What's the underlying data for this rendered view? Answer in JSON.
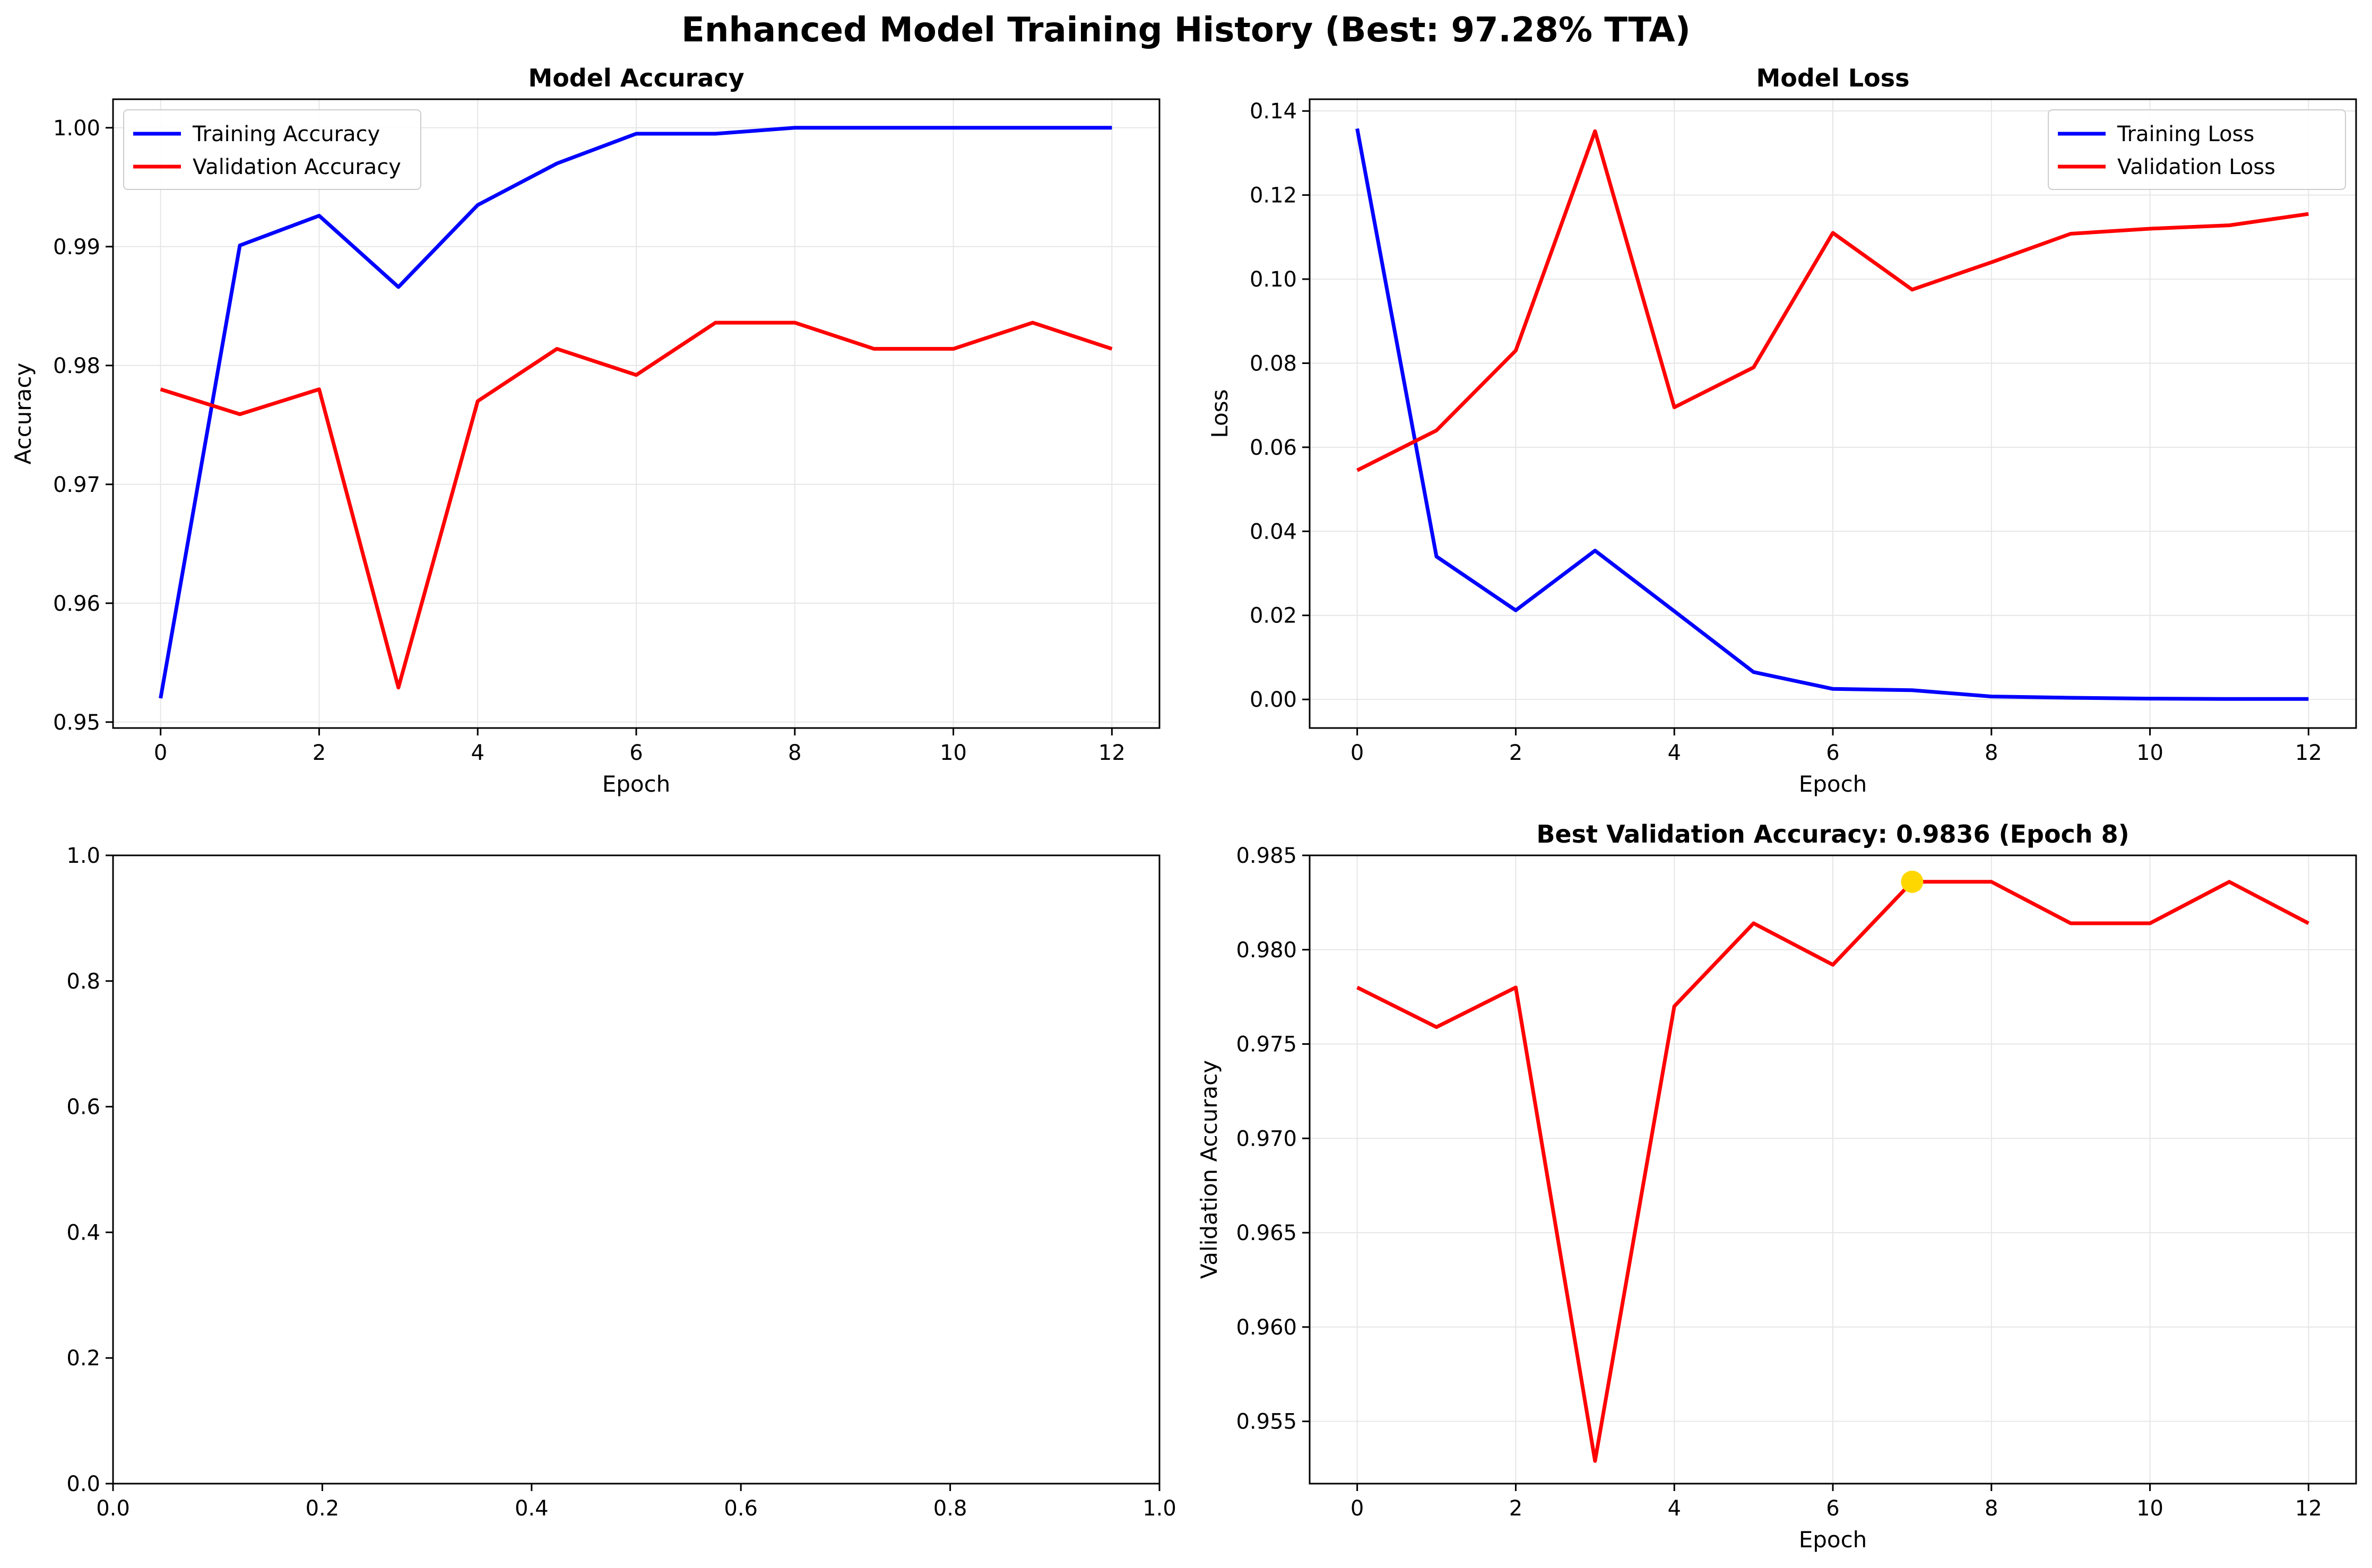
{
  "suptitle": "Enhanced Model Training History (Best: 97.28% TTA)",
  "colors": {
    "training": "#0000ff",
    "validation": "#ff0000",
    "best_marker": "#ffd700",
    "grid": "#e6e6e6"
  },
  "chart_data": [
    {
      "type": "line",
      "title": "Model Accuracy",
      "xlabel": "Epoch",
      "ylabel": "Accuracy",
      "xlim": [
        -0.6,
        12.6
      ],
      "ylim": [
        0.9495,
        1.0024
      ],
      "xticks": [
        "0",
        "2",
        "4",
        "6",
        "8",
        "10",
        "12"
      ],
      "yticks": [
        "0.95",
        "0.96",
        "0.97",
        "0.98",
        "0.99",
        "1.00"
      ],
      "grid": true,
      "legend": "upper-left",
      "x": [
        0,
        1,
        2,
        3,
        4,
        5,
        6,
        7,
        8,
        9,
        10,
        11,
        12
      ],
      "series": [
        {
          "name": "Training Accuracy",
          "values": [
            0.952,
            0.9901,
            0.9926,
            0.9866,
            0.9935,
            0.997,
            0.9995,
            0.9995,
            1.0,
            1.0,
            1.0,
            1.0,
            1.0
          ]
        },
        {
          "name": "Validation Accuracy",
          "values": [
            0.978,
            0.9759,
            0.978,
            0.9529,
            0.977,
            0.9814,
            0.9792,
            0.9836,
            0.9836,
            0.9814,
            0.9814,
            0.9836,
            0.9814
          ]
        }
      ]
    },
    {
      "type": "line",
      "title": "Model Loss",
      "xlabel": "Epoch",
      "ylabel": "Loss",
      "xlim": [
        -0.6,
        12.6
      ],
      "ylim": [
        -0.0068,
        0.1428
      ],
      "xticks": [
        "0",
        "2",
        "4",
        "6",
        "8",
        "10",
        "12"
      ],
      "yticks": [
        "0.00",
        "0.02",
        "0.04",
        "0.06",
        "0.08",
        "0.10",
        "0.12",
        "0.14"
      ],
      "grid": true,
      "legend": "upper-right",
      "x": [
        0,
        1,
        2,
        3,
        4,
        5,
        6,
        7,
        8,
        9,
        10,
        11,
        12
      ],
      "series": [
        {
          "name": "Training Loss",
          "values": [
            0.1358,
            0.034,
            0.0212,
            0.0354,
            0.021,
            0.0065,
            0.0025,
            0.0022,
            0.0007,
            0.0004,
            0.0002,
            0.0001,
            0.0001
          ]
        },
        {
          "name": "Validation Loss",
          "values": [
            0.0545,
            0.064,
            0.083,
            0.1352,
            0.0695,
            0.079,
            0.111,
            0.0975,
            0.104,
            0.1108,
            0.112,
            0.1128,
            0.1155
          ]
        }
      ]
    },
    {
      "type": "line",
      "title": "",
      "xlabel": "",
      "ylabel": "",
      "xlim": [
        0,
        1
      ],
      "ylim": [
        0,
        1
      ],
      "xticks": [
        "0.0",
        "0.2",
        "0.4",
        "0.6",
        "0.8",
        "1.0"
      ],
      "yticks": [
        "0.0",
        "0.2",
        "0.4",
        "0.6",
        "0.8",
        "1.0"
      ],
      "grid": false,
      "legend": "none",
      "x": [],
      "series": []
    },
    {
      "type": "line",
      "title": "Best Validation Accuracy: 0.9836 (Epoch 8)",
      "xlabel": "Epoch",
      "ylabel": "Validation Accuracy",
      "xlim": [
        -0.6,
        12.6
      ],
      "ylim": [
        0.9517,
        0.985
      ],
      "xticks": [
        "0",
        "2",
        "4",
        "6",
        "8",
        "10",
        "12"
      ],
      "yticks": [
        "0.955",
        "0.960",
        "0.965",
        "0.970",
        "0.975",
        "0.980",
        "0.985"
      ],
      "grid": true,
      "legend": "none",
      "x": [
        0,
        1,
        2,
        3,
        4,
        5,
        6,
        7,
        8,
        9,
        10,
        11,
        12
      ],
      "series": [
        {
          "name": "",
          "values": [
            0.978,
            0.9759,
            0.978,
            0.9529,
            0.977,
            0.9814,
            0.9792,
            0.9836,
            0.9836,
            0.9814,
            0.9814,
            0.9836,
            0.9814
          ]
        }
      ],
      "best_point": {
        "x": 7,
        "y": 0.9836
      }
    }
  ]
}
